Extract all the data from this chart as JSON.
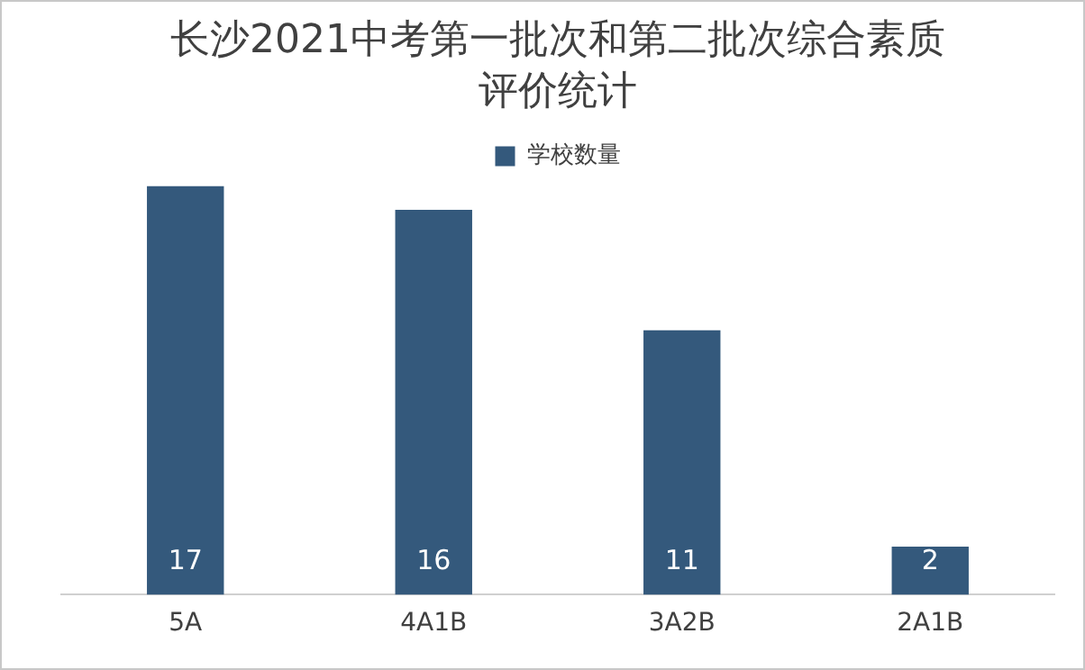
{
  "chart_data": {
    "type": "bar",
    "title": "长沙2021中考第一批次和第二批次综合素质评价统计",
    "categories": [
      "5A",
      "4A1B",
      "3A2B",
      "2A1B"
    ],
    "series": [
      {
        "name": "学校数量",
        "color": "#34597c",
        "values": [
          17,
          16,
          11,
          2
        ]
      }
    ],
    "data_labels": true,
    "legend": "top"
  }
}
